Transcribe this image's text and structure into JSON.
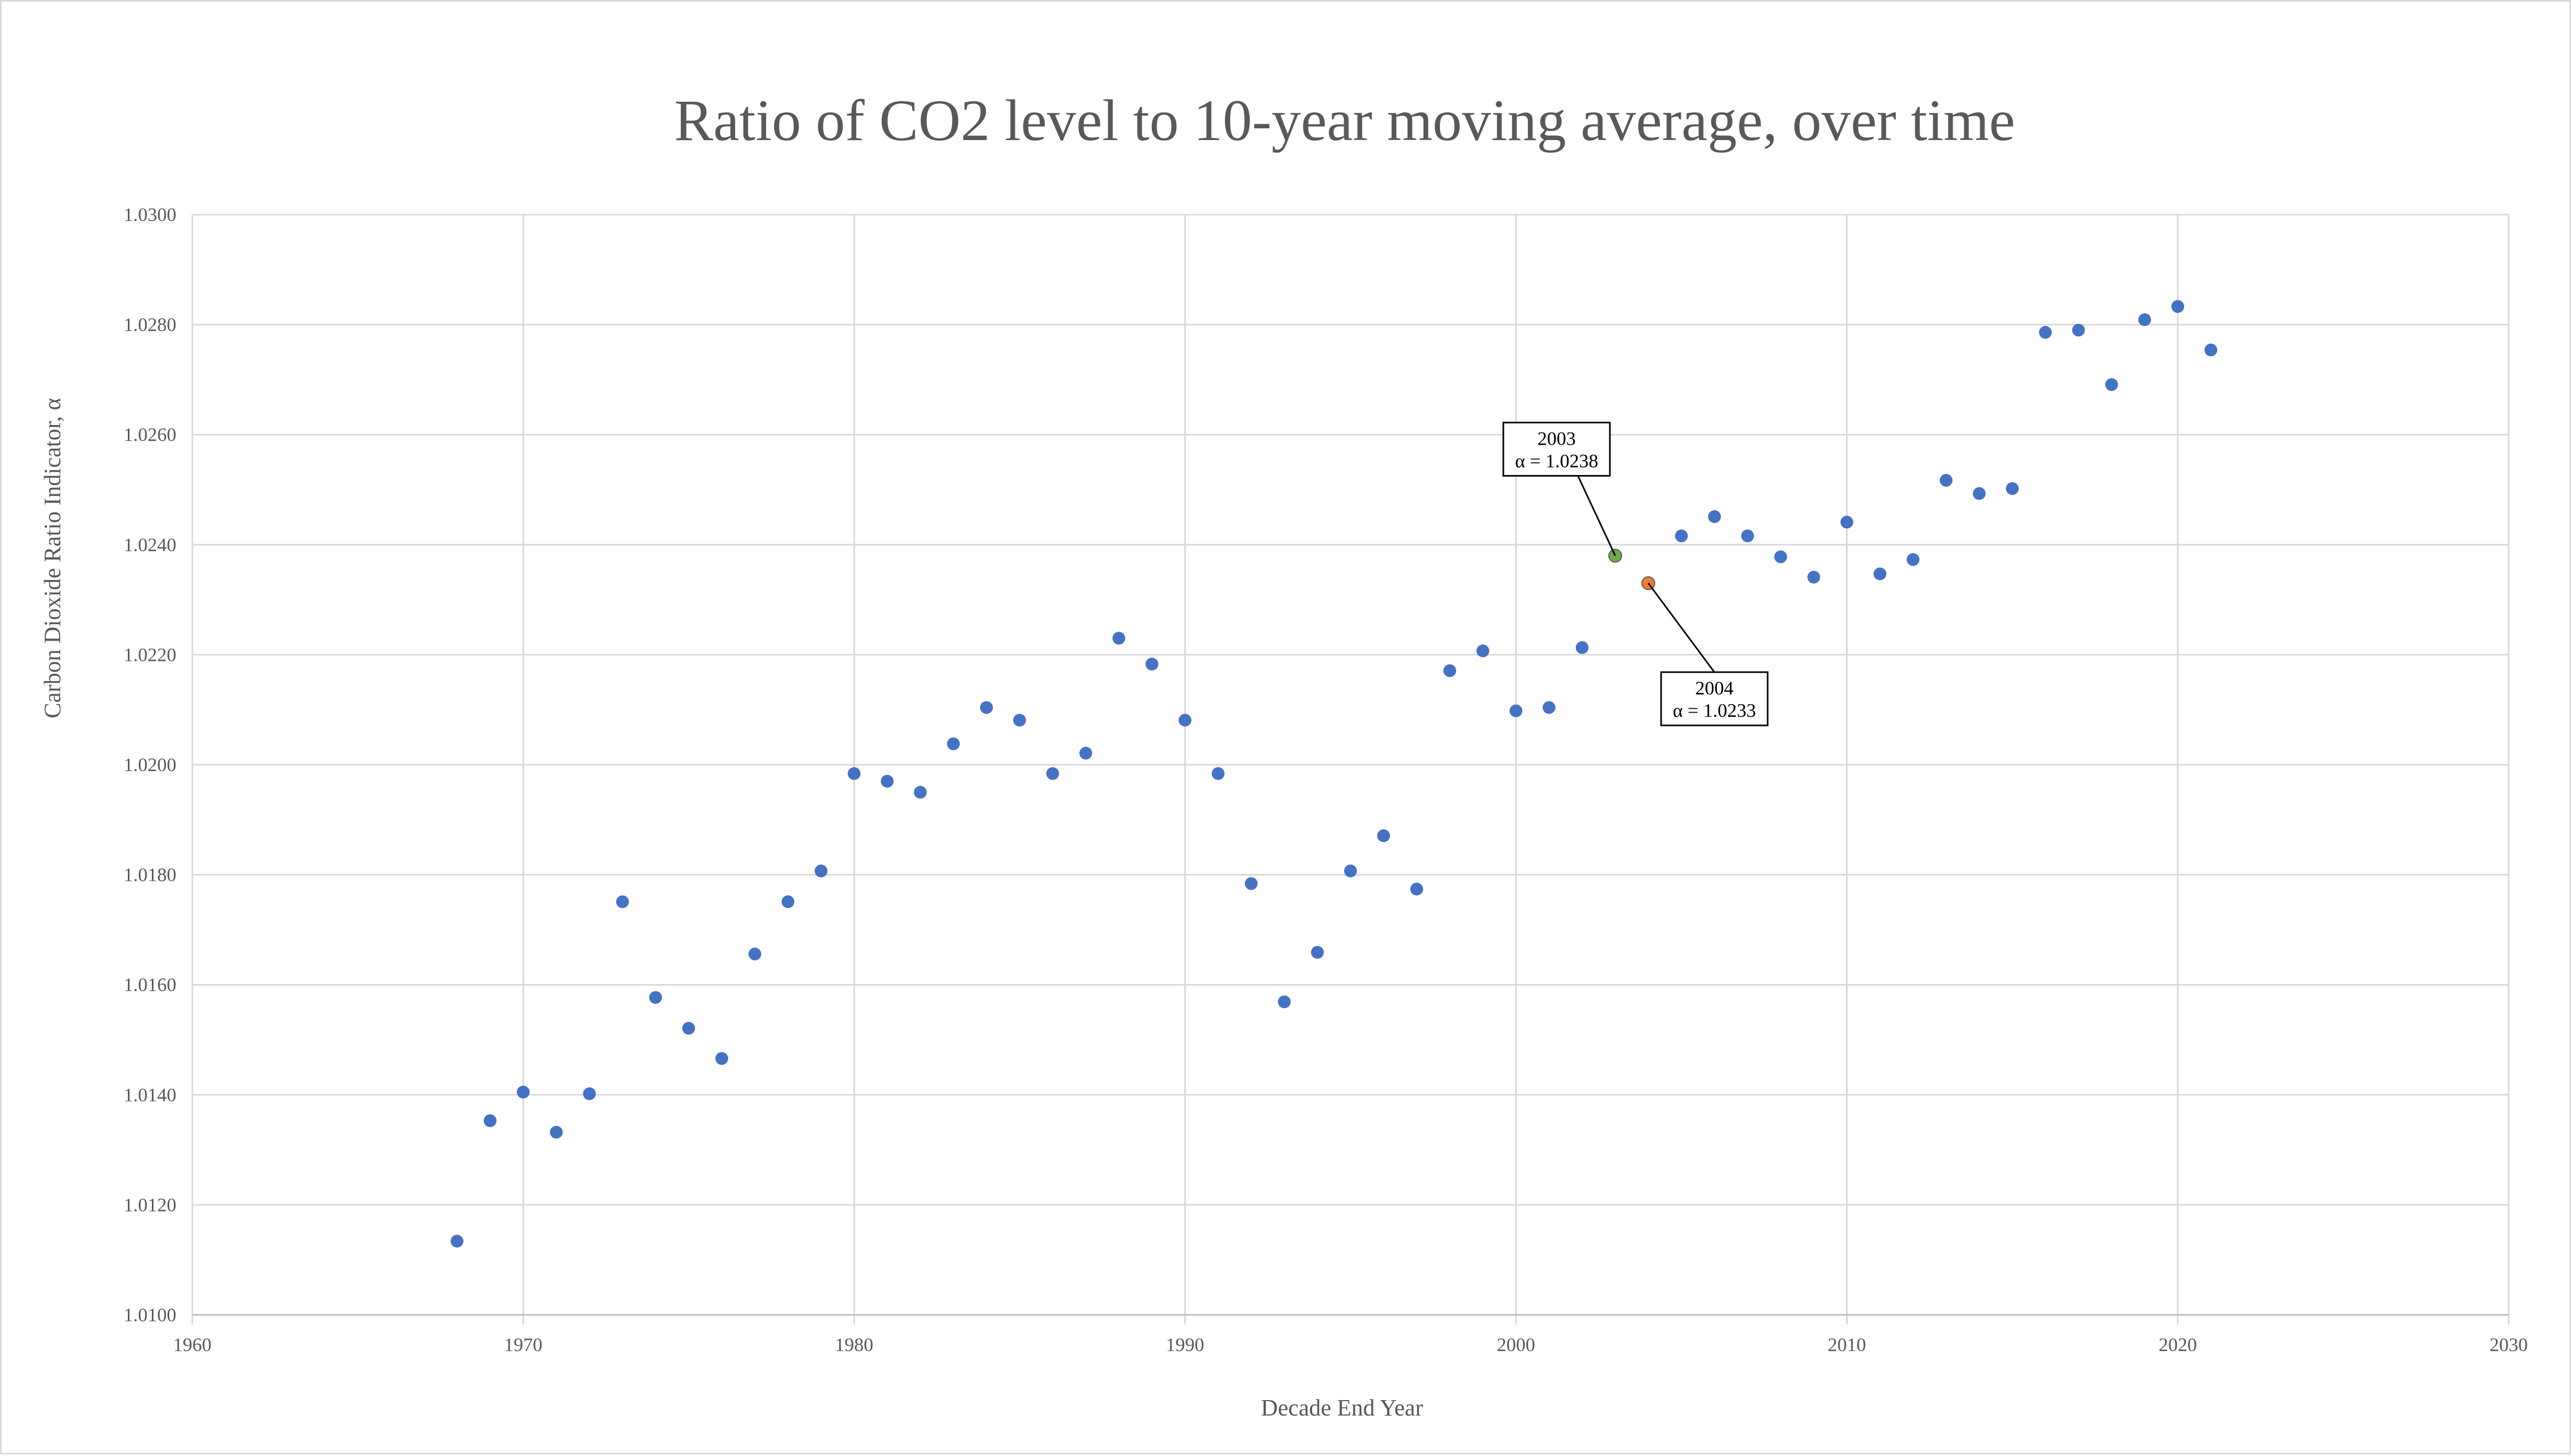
{
  "chart_data": {
    "type": "scatter",
    "title": "Ratio of CO2 level to 10-year moving average, over time",
    "xlabel": "Decade End Year",
    "ylabel": "Carbon Dioxide Ratio Indicator, α",
    "xlim": [
      1960,
      2030
    ],
    "ylim": [
      1.01,
      1.03
    ],
    "x_ticks": [
      "1960",
      "1970",
      "1980",
      "1990",
      "2000",
      "2010",
      "2020",
      "2030"
    ],
    "y_ticks": [
      "1.0100",
      "1.0120",
      "1.0140",
      "1.0160",
      "1.0180",
      "1.0200",
      "1.0220",
      "1.0240",
      "1.0260",
      "1.0280",
      "1.0300"
    ],
    "grid": true,
    "colors": {
      "series": "#4472c4",
      "highlight_2003": "#70ad47",
      "highlight_2004": "#ed7d31",
      "grid": "#d9d9d9"
    },
    "points": [
      {
        "x": 1968,
        "y": 1.01134
      },
      {
        "x": 1969,
        "y": 1.01353
      },
      {
        "x": 1970,
        "y": 1.01405
      },
      {
        "x": 1971,
        "y": 1.01332
      },
      {
        "x": 1972,
        "y": 1.01402
      },
      {
        "x": 1973,
        "y": 1.01751
      },
      {
        "x": 1974,
        "y": 1.01577
      },
      {
        "x": 1975,
        "y": 1.01521
      },
      {
        "x": 1976,
        "y": 1.01466
      },
      {
        "x": 1977,
        "y": 1.01656
      },
      {
        "x": 1978,
        "y": 1.01751
      },
      {
        "x": 1979,
        "y": 1.01807
      },
      {
        "x": 1980,
        "y": 1.01984
      },
      {
        "x": 1981,
        "y": 1.0197
      },
      {
        "x": 1982,
        "y": 1.0195
      },
      {
        "x": 1983,
        "y": 1.02038
      },
      {
        "x": 1984,
        "y": 1.02104
      },
      {
        "x": 1985,
        "y": 1.02081
      },
      {
        "x": 1986,
        "y": 1.01984
      },
      {
        "x": 1987,
        "y": 1.02021
      },
      {
        "x": 1988,
        "y": 1.0223
      },
      {
        "x": 1989,
        "y": 1.02183
      },
      {
        "x": 1990,
        "y": 1.02081
      },
      {
        "x": 1991,
        "y": 1.01984
      },
      {
        "x": 1992,
        "y": 1.01784
      },
      {
        "x": 1993,
        "y": 1.01569
      },
      {
        "x": 1994,
        "y": 1.01659
      },
      {
        "x": 1995,
        "y": 1.01807
      },
      {
        "x": 1996,
        "y": 1.01871
      },
      {
        "x": 1997,
        "y": 1.01774
      },
      {
        "x": 1998,
        "y": 1.02171
      },
      {
        "x": 1999,
        "y": 1.02207
      },
      {
        "x": 2000,
        "y": 1.02098
      },
      {
        "x": 2001,
        "y": 1.02104
      },
      {
        "x": 2002,
        "y": 1.02213
      },
      {
        "x": 2003,
        "y": 1.0238,
        "highlight": "highlight_2003"
      },
      {
        "x": 2004,
        "y": 1.0233,
        "highlight": "highlight_2004"
      },
      {
        "x": 2005,
        "y": 1.02416
      },
      {
        "x": 2006,
        "y": 1.02451
      },
      {
        "x": 2007,
        "y": 1.02416
      },
      {
        "x": 2008,
        "y": 1.02378
      },
      {
        "x": 2009,
        "y": 1.02341
      },
      {
        "x": 2010,
        "y": 1.02441
      },
      {
        "x": 2011,
        "y": 1.02347
      },
      {
        "x": 2012,
        "y": 1.02373
      },
      {
        "x": 2013,
        "y": 1.02517
      },
      {
        "x": 2014,
        "y": 1.02493
      },
      {
        "x": 2015,
        "y": 1.02502
      },
      {
        "x": 2016,
        "y": 1.02786
      },
      {
        "x": 2017,
        "y": 1.0279
      },
      {
        "x": 2018,
        "y": 1.02691
      },
      {
        "x": 2019,
        "y": 1.02809
      },
      {
        "x": 2020,
        "y": 1.02833
      },
      {
        "x": 2021,
        "y": 1.02754
      }
    ],
    "annotations": [
      {
        "x": 2003,
        "y": 1.0238,
        "year": "2003",
        "text": "α = 1.0238",
        "placement": "above-left"
      },
      {
        "x": 2004,
        "y": 1.0233,
        "year": "2004",
        "text": "α = 1.0233",
        "placement": "below-right"
      }
    ]
  }
}
